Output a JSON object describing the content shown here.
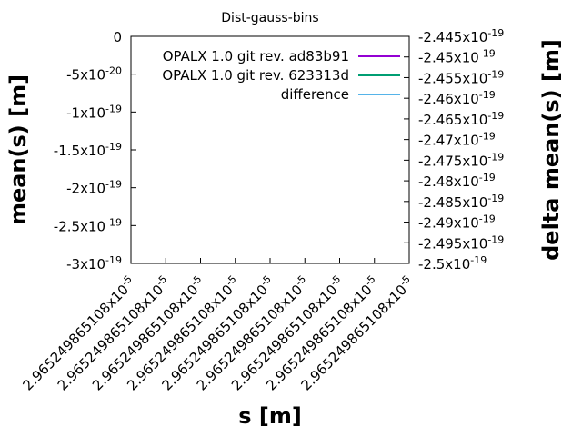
{
  "chart_data": {
    "type": "line",
    "title": "Dist-gauss-bins",
    "xlabel": "s [m]",
    "ylabel": "mean(s) [m]",
    "y2label": "delta mean(s) [m]",
    "ylim": [
      -3e-19,
      0
    ],
    "y2lim": [
      -2.5e-19,
      -2.445e-19
    ],
    "yticks": [
      {
        "m": "0",
        "e": ""
      },
      {
        "m": "-5x10",
        "e": "-20"
      },
      {
        "m": "-1x10",
        "e": "-19"
      },
      {
        "m": "-1.5x10",
        "e": "-19"
      },
      {
        "m": "-2x10",
        "e": "-19"
      },
      {
        "m": "-2.5x10",
        "e": "-19"
      },
      {
        "m": "-3x10",
        "e": "-19"
      }
    ],
    "y2ticks": [
      {
        "m": "-2.445x10",
        "e": "-19"
      },
      {
        "m": "-2.45x10",
        "e": "-19"
      },
      {
        "m": "-2.455x10",
        "e": "-19"
      },
      {
        "m": "-2.46x10",
        "e": "-19"
      },
      {
        "m": "-2.465x10",
        "e": "-19"
      },
      {
        "m": "-2.47x10",
        "e": "-19"
      },
      {
        "m": "-2.475x10",
        "e": "-19"
      },
      {
        "m": "-2.48x10",
        "e": "-19"
      },
      {
        "m": "-2.485x10",
        "e": "-19"
      },
      {
        "m": "-2.49x10",
        "e": "-19"
      },
      {
        "m": "-2.495x10",
        "e": "-19"
      },
      {
        "m": "-2.5x10",
        "e": "-19"
      }
    ],
    "xticks": [
      {
        "m": "2.965249865108x10",
        "e": "-5"
      },
      {
        "m": "2.965249865108x10",
        "e": "-5"
      },
      {
        "m": "2.965249865108x10",
        "e": "-5"
      },
      {
        "m": "2.965249865108x10",
        "e": "-5"
      },
      {
        "m": "2.965249865108x10",
        "e": "-5"
      },
      {
        "m": "2.965249865108x10",
        "e": "-5"
      },
      {
        "m": "2.965249865108x10",
        "e": "-5"
      },
      {
        "m": "2.965249865108x10",
        "e": "-5"
      },
      {
        "m": "2.965249865108x10",
        "e": "-5"
      }
    ],
    "series": [
      {
        "name": "OPALX 1.0 git rev. ad83b91",
        "color": "#9400d3",
        "values": []
      },
      {
        "name": "OPALX 1.0 git rev. 623313d",
        "color": "#009e73",
        "values": []
      },
      {
        "name": "difference",
        "color": "#56b4e9",
        "values": []
      }
    ],
    "grid": false,
    "legend": "bottom-center"
  }
}
